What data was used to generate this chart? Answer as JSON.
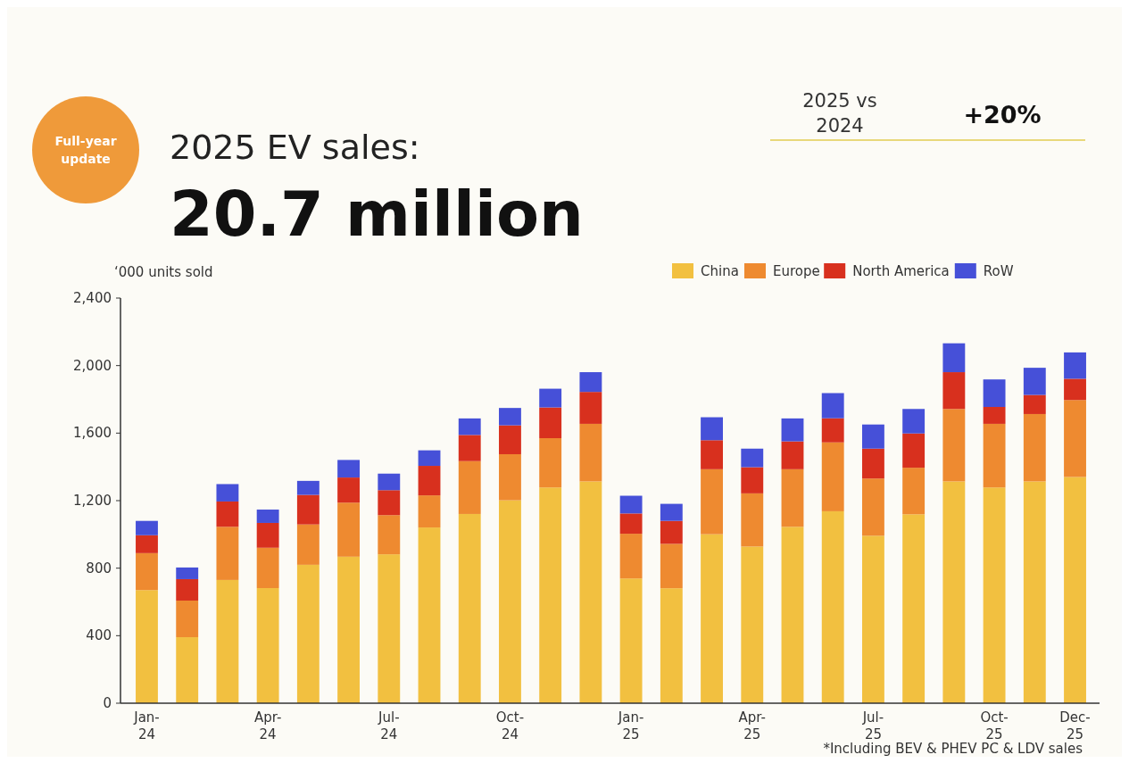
{
  "chart_data": {
    "type": "bar",
    "title": "2025 EV sales:",
    "subtitle": "20.7 million",
    "ylabel": "‘000 units sold",
    "annotations": [
      "Full-year update",
      "2025 vs 2024",
      "+20%",
      "*Including BEV & PHEV PC & LDV sales"
    ],
    "categories": [
      "Jan-24",
      null,
      null,
      "Apr-24",
      null,
      null,
      "Jul-24",
      null,
      null,
      "Oct-24",
      null,
      null,
      "Jan-25",
      null,
      null,
      "Apr-25",
      null,
      null,
      "Jul-25",
      null,
      null,
      "Oct-25",
      null,
      "Dec-25"
    ],
    "stacked": true,
    "series": [
      {
        "name": "China",
        "color": "#f2c040",
        "values": [
          670,
          391,
          730,
          682,
          820,
          868,
          882,
          1041,
          1121,
          1202,
          1278,
          1314,
          739,
          681,
          1001,
          928,
          1045,
          1137,
          992,
          1119,
          1314,
          1278,
          1314,
          1340
        ]
      },
      {
        "name": "Europe",
        "color": "#ee8a30",
        "values": [
          219,
          217,
          315,
          239,
          239,
          320,
          232,
          190,
          313,
          273,
          292,
          341,
          265,
          263,
          385,
          315,
          341,
          408,
          339,
          276,
          429,
          377,
          399,
          456
        ]
      },
      {
        "name": "North America",
        "color": "#d8301e",
        "values": [
          106,
          127,
          150,
          147,
          175,
          149,
          148,
          175,
          155,
          171,
          182,
          189,
          120,
          136,
          172,
          155,
          165,
          143,
          177,
          203,
          218,
          100,
          113,
          126
        ]
      },
      {
        "name": "RoW",
        "color": "#4650d8",
        "values": [
          85,
          69,
          103,
          79,
          83,
          104,
          98,
          92,
          98,
          103,
          111,
          117,
          105,
          101,
          136,
          110,
          136,
          149,
          143,
          145,
          171,
          163,
          161,
          156
        ]
      }
    ],
    "ylim": [
      0,
      2400
    ],
    "yticks": [
      0,
      400,
      800,
      {
        "value": 1200,
        "label": "1,200"
      },
      {
        "value": 1600,
        "label": "1,600"
      },
      {
        "value": 2000,
        "label": "2,000"
      },
      {
        "value": 2400,
        "label": "2,400"
      }
    ],
    "grid": false,
    "legend": "top right"
  }
}
